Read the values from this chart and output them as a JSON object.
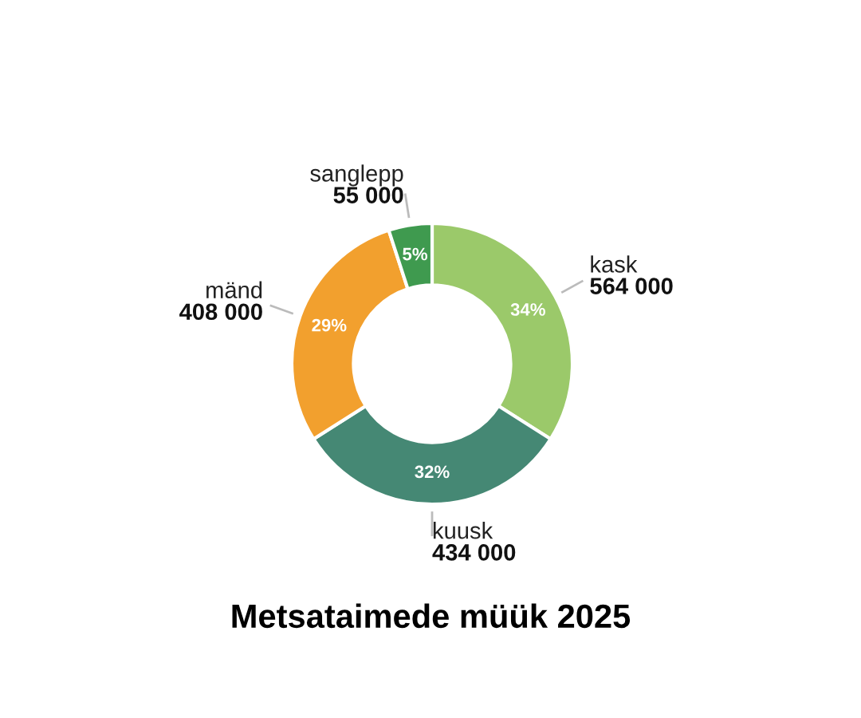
{
  "chart_data": {
    "type": "donut",
    "title": "Metsataimede müük 2025",
    "categories": [
      "kask",
      "kuusk",
      "mänd",
      "sanglepp"
    ],
    "values": [
      34,
      32,
      29,
      5
    ],
    "value_labels": [
      "34%",
      "32%",
      "29%",
      "5%"
    ],
    "colors": [
      "#9bc96a",
      "#458874",
      "#f2a02e",
      "#3f9a4f"
    ],
    "annotations": [
      "564 000",
      "434 000",
      "408 000",
      "55 000"
    ]
  }
}
